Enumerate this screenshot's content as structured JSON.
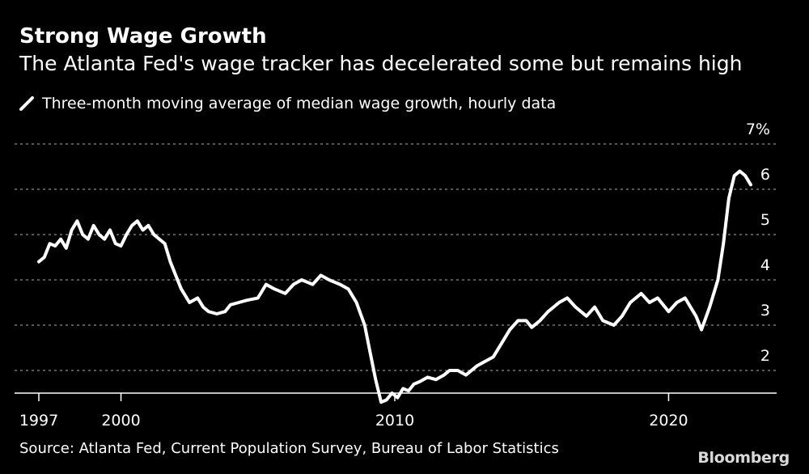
{
  "header": {
    "title": "Strong Wage Growth",
    "subtitle": "The Atlanta Fed's wage tracker has decelerated some but remains high"
  },
  "legend": {
    "label": "Three-month moving average of median wage growth, hourly data"
  },
  "footer": {
    "source": "Source: Atlanta Fed, Current Population Survey, Bureau of Labor Statistics",
    "logo": "Bloomberg"
  },
  "colors": {
    "background": "#000000",
    "line": "#ffffff",
    "grid": "#8c8c8c",
    "text": "#ffffff"
  },
  "chart_data": {
    "type": "line",
    "title": "Strong Wage Growth",
    "subtitle": "The Atlanta Fed's wage tracker has decelerated some but remains high",
    "xlabel": "",
    "ylabel": "",
    "xlim": [
      1997,
      2023.5
    ],
    "ylim": [
      1.5,
      7
    ],
    "grid": true,
    "y_ticks": [
      {
        "value": 7,
        "label": "7%"
      },
      {
        "value": 6,
        "label": "6"
      },
      {
        "value": 5,
        "label": "5"
      },
      {
        "value": 4,
        "label": "4"
      },
      {
        "value": 3,
        "label": "3"
      },
      {
        "value": 2,
        "label": "2"
      }
    ],
    "x_ticks": [
      {
        "value": 1997,
        "label": "1997"
      },
      {
        "value": 2000,
        "label": "2000"
      },
      {
        "value": 2010,
        "label": "2010"
      },
      {
        "value": 2020,
        "label": "2020"
      }
    ],
    "series": [
      {
        "name": "Three-month moving average of median wage growth, hourly data",
        "x": [
          1997.0,
          1997.2,
          1997.4,
          1997.6,
          1997.8,
          1998.0,
          1998.2,
          1998.4,
          1998.6,
          1998.8,
          1999.0,
          1999.2,
          1999.4,
          1999.6,
          1999.8,
          2000.0,
          2000.2,
          2000.4,
          2000.6,
          2000.8,
          2001.0,
          2001.2,
          2001.4,
          2001.6,
          2001.8,
          2002.0,
          2002.2,
          2002.5,
          2002.8,
          2003.0,
          2003.2,
          2003.5,
          2003.8,
          2004.0,
          2004.3,
          2004.6,
          2005.0,
          2005.3,
          2005.6,
          2006.0,
          2006.3,
          2006.6,
          2007.0,
          2007.3,
          2007.6,
          2008.0,
          2008.3,
          2008.6,
          2008.9,
          2009.1,
          2009.3,
          2009.5,
          2009.7,
          2009.9,
          2010.1,
          2010.3,
          2010.5,
          2010.7,
          2010.9,
          2011.2,
          2011.5,
          2011.8,
          2012.0,
          2012.3,
          2012.6,
          2013.0,
          2013.3,
          2013.6,
          2013.9,
          2014.2,
          2014.5,
          2014.8,
          2015.0,
          2015.3,
          2015.6,
          2016.0,
          2016.3,
          2016.6,
          2017.0,
          2017.3,
          2017.6,
          2018.0,
          2018.3,
          2018.6,
          2019.0,
          2019.3,
          2019.6,
          2020.0,
          2020.3,
          2020.6,
          2021.0,
          2021.2,
          2021.5,
          2021.8,
          2022.0,
          2022.2,
          2022.4,
          2022.6,
          2022.8,
          2023.0
        ],
        "values": [
          4.4,
          4.5,
          4.8,
          4.75,
          4.9,
          4.7,
          5.1,
          5.3,
          5.0,
          4.9,
          5.2,
          5.0,
          4.9,
          5.1,
          4.8,
          4.75,
          5.0,
          5.2,
          5.3,
          5.1,
          5.2,
          5.0,
          4.9,
          4.8,
          4.4,
          4.1,
          3.8,
          3.5,
          3.6,
          3.4,
          3.3,
          3.25,
          3.3,
          3.45,
          3.5,
          3.55,
          3.6,
          3.9,
          3.8,
          3.7,
          3.9,
          4.0,
          3.9,
          4.1,
          4.0,
          3.9,
          3.8,
          3.5,
          3.0,
          2.4,
          1.8,
          1.3,
          1.35,
          1.5,
          1.4,
          1.6,
          1.55,
          1.7,
          1.75,
          1.85,
          1.8,
          1.9,
          2.0,
          2.0,
          1.9,
          2.1,
          2.2,
          2.3,
          2.6,
          2.9,
          3.1,
          3.1,
          2.95,
          3.1,
          3.3,
          3.5,
          3.6,
          3.4,
          3.2,
          3.4,
          3.1,
          3.0,
          3.2,
          3.5,
          3.7,
          3.5,
          3.6,
          3.3,
          3.5,
          3.6,
          3.2,
          2.9,
          3.4,
          4.0,
          4.8,
          5.8,
          6.3,
          6.4,
          6.3,
          6.1
        ]
      }
    ]
  }
}
